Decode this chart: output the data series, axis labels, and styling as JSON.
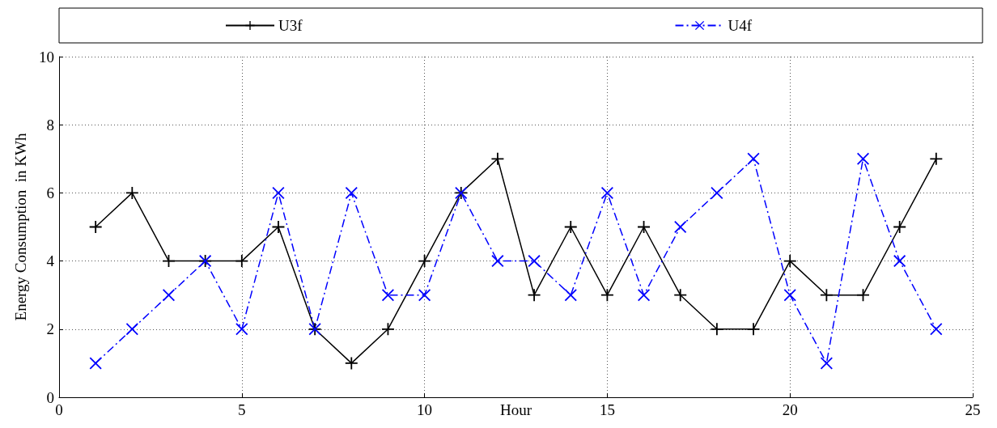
{
  "chart_data": {
    "type": "line",
    "xlabel": "Hour",
    "ylabel": "Energy Consumption  in KWh",
    "x": [
      1,
      2,
      3,
      4,
      5,
      6,
      7,
      8,
      9,
      10,
      11,
      12,
      13,
      14,
      15,
      16,
      17,
      18,
      19,
      20,
      21,
      22,
      23,
      24
    ],
    "series": [
      {
        "name": "U3f",
        "color": "#000000",
        "marker": "cross",
        "line_style": "solid",
        "values": [
          5,
          6,
          4,
          4,
          4,
          5,
          2,
          1,
          2,
          4,
          6,
          7,
          3,
          5,
          3,
          5,
          3,
          2,
          2,
          4,
          3,
          3,
          5,
          7
        ]
      },
      {
        "name": "U4f",
        "color": "#0000ff",
        "marker": "x",
        "line_style": "dashdot",
        "values": [
          1,
          2,
          3,
          4,
          2,
          6,
          2,
          6,
          3,
          3,
          6,
          4,
          4,
          3,
          6,
          3,
          5,
          6,
          7,
          3,
          1,
          7,
          4,
          2
        ]
      }
    ],
    "xlim": [
      0,
      25
    ],
    "xticks": [
      0,
      5,
      10,
      15,
      20,
      25
    ],
    "ylim": [
      0,
      10
    ],
    "yticks": [
      0,
      2,
      4,
      6,
      8,
      10
    ],
    "grid": true,
    "legend": "top"
  }
}
